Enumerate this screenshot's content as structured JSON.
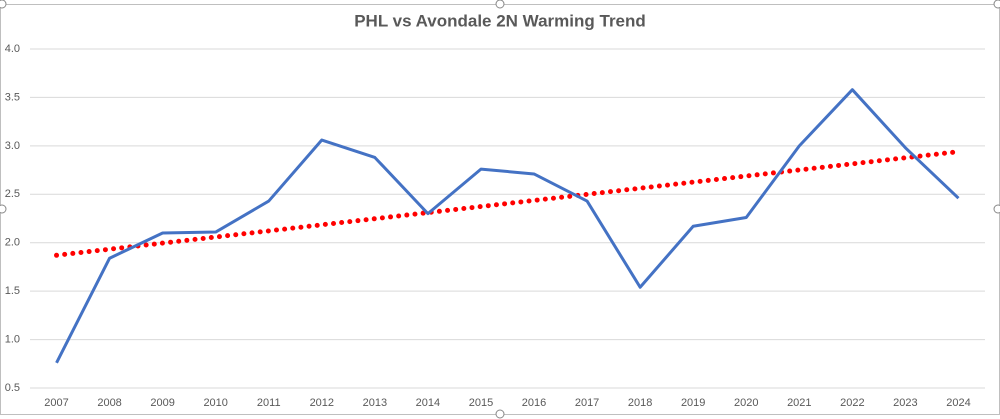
{
  "chart_data": {
    "type": "line",
    "title": "PHL vs Avondale 2N Warming Trend",
    "categories": [
      "2007",
      "2008",
      "2009",
      "2010",
      "2011",
      "2012",
      "2013",
      "2014",
      "2015",
      "2016",
      "2017",
      "2018",
      "2019",
      "2020",
      "2021",
      "2022",
      "2023",
      "2024"
    ],
    "series": [
      {
        "color": "#4472c4",
        "values": [
          0.76,
          1.84,
          2.1,
          2.11,
          2.43,
          3.06,
          2.88,
          2.3,
          2.76,
          2.71,
          2.43,
          1.54,
          2.17,
          2.26,
          3.0,
          3.58,
          2.98,
          2.46
        ]
      }
    ],
    "trendline": {
      "color": "#ff0000",
      "values": [
        1.87,
        2.94
      ]
    },
    "ylim": [
      0.5,
      4.0
    ],
    "yticks": [
      0.5,
      {
        "value": 1.0,
        "label": "1.0"
      },
      1.5,
      {
        "value": 2.0,
        "label": "2.0"
      },
      2.5,
      {
        "value": 3.0,
        "label": "3.0"
      },
      3.5,
      {
        "value": 4.0,
        "label": "4.0"
      }
    ],
    "grid": true
  }
}
